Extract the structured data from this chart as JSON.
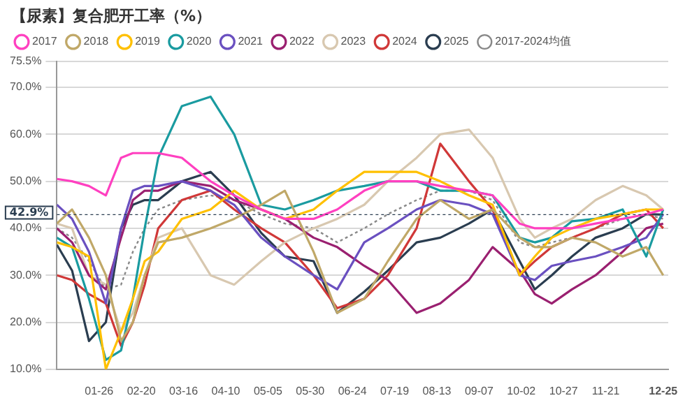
{
  "chart_data": {
    "type": "line",
    "title": "【尿素】复合肥开工率（%）",
    "x": [
      "--01-01",
      "--01-10",
      "--01-20",
      "--01-30",
      "--02-08",
      "--02-15",
      "--02-22",
      "--03-01",
      "--03-15",
      "--04-01",
      "--04-15",
      "--05-01",
      "--05-15",
      "--06-01",
      "--06-15",
      "--07-01",
      "--07-15",
      "--08-01",
      "--08-15",
      "--09-01",
      "--09-15",
      "--10-01",
      "--10-10",
      "--10-20",
      "--11-01",
      "--11-15",
      "--12-01",
      "--12-15",
      "--12-25"
    ],
    "series": [
      {
        "name": "2017",
        "color": "#ff40c0",
        "values": [
          50.5,
          50,
          49,
          47,
          55,
          56,
          56,
          56,
          55,
          50,
          47,
          44,
          42,
          42,
          44,
          48,
          50,
          50,
          49,
          48,
          47,
          41,
          40,
          40,
          40,
          41,
          42,
          43,
          44
        ]
      },
      {
        "name": "2018",
        "color": "#c0a868",
        "values": [
          41,
          44,
          38,
          30,
          16,
          20,
          30,
          37,
          38,
          40,
          42,
          45,
          48,
          35,
          22,
          25,
          33,
          42,
          46,
          42,
          44,
          38,
          36,
          36,
          38,
          37,
          34,
          36,
          30
        ]
      },
      {
        "name": "2019",
        "color": "#ffc000",
        "values": [
          37,
          36,
          34,
          10,
          18,
          25,
          33,
          35,
          42,
          44,
          48,
          44,
          42,
          44,
          48,
          52,
          52,
          52,
          50,
          47,
          45,
          30,
          34,
          38,
          40,
          42,
          43,
          44,
          44
        ]
      },
      {
        "name": "2020",
        "color": "#1a9ba0",
        "values": [
          38,
          36,
          25,
          12,
          14,
          25,
          40,
          55,
          66,
          68,
          60,
          45,
          44,
          46,
          48,
          49,
          50,
          50,
          48,
          48,
          47,
          38,
          37,
          38,
          41.5,
          42,
          44,
          34,
          44
        ]
      },
      {
        "name": "2021",
        "color": "#6a50c0",
        "values": [
          45,
          42,
          35,
          24,
          40,
          48,
          49,
          49,
          50,
          48,
          45,
          38,
          34,
          30,
          27,
          37,
          40,
          44,
          46,
          45,
          43,
          30,
          29,
          32,
          33,
          34,
          36,
          38,
          43
        ]
      },
      {
        "name": "2022",
        "color": "#9a2070",
        "values": [
          40,
          37,
          30,
          27,
          38,
          46,
          48,
          48,
          50,
          49,
          46,
          44,
          42,
          38,
          36,
          32,
          29,
          22,
          24,
          29,
          36,
          31,
          26,
          24,
          27,
          30,
          35,
          40,
          41
        ]
      },
      {
        "name": "2023",
        "color": "#d8c8b0",
        "values": [
          41,
          40,
          30,
          28,
          18,
          22,
          30,
          38,
          40,
          30,
          28,
          33,
          37,
          40,
          42,
          45,
          50,
          55,
          60,
          61,
          55,
          42,
          38,
          40,
          42,
          46,
          49,
          47,
          44
        ]
      },
      {
        "name": "2024",
        "color": "#d03838",
        "values": [
          30,
          29,
          26,
          24,
          15,
          20,
          28,
          40,
          46,
          48,
          44,
          40,
          37,
          30,
          23,
          25,
          30,
          40,
          58,
          50,
          44,
          30,
          33,
          36,
          38,
          40,
          43,
          44,
          40
        ]
      },
      {
        "name": "2025",
        "color": "#2a3d50",
        "values": [
          36.5,
          31,
          16,
          20,
          40,
          45,
          46,
          46,
          50,
          52,
          47,
          39,
          34,
          33,
          22,
          26.5,
          31,
          37,
          38,
          41,
          44,
          33,
          27,
          30,
          34,
          38,
          40,
          43,
          42.9
        ]
      },
      {
        "name": "2017-2024均值",
        "color": "#888888",
        "line_style": "dotted",
        "values": [
          40,
          38,
          33,
          27,
          28,
          35,
          40,
          44,
          46,
          47,
          46,
          43,
          41,
          40,
          37,
          40,
          43,
          46,
          48,
          48,
          46,
          37,
          36,
          37,
          38,
          40,
          42,
          43,
          42
        ]
      }
    ],
    "xlim": [
      "--01-01",
      "--12-28"
    ],
    "xticks": [
      {
        "value": "--01-26",
        "label": "01-26"
      },
      {
        "value": "--02-20",
        "label": "02-20"
      },
      {
        "value": "--03-16",
        "label": "03-16"
      },
      {
        "value": "--04-10",
        "label": "04-10"
      },
      {
        "value": "--05-05",
        "label": "05-05"
      },
      {
        "value": "--05-30",
        "label": "05-30"
      },
      {
        "value": "--06-24",
        "label": "06-24"
      },
      {
        "value": "--07-19",
        "label": "07-19"
      },
      {
        "value": "--08-13",
        "label": "08-13"
      },
      {
        "value": "--09-07",
        "label": "09-07"
      },
      {
        "value": "--10-02",
        "label": "10-02"
      },
      {
        "value": "--10-27",
        "label": "10-27"
      },
      {
        "value": "--11-21",
        "label": "11-21"
      },
      {
        "value": "--12-25",
        "label": "12-25"
      }
    ],
    "ylim": [
      10,
      75.5
    ],
    "yticks": [
      {
        "value": 10,
        "label": "10.0%"
      },
      {
        "value": 20,
        "label": "20.0%"
      },
      {
        "value": 30,
        "label": "30.0%"
      },
      {
        "value": 40,
        "label": "40.0%"
      },
      {
        "value": 50,
        "label": "50.0%"
      },
      {
        "value": 60,
        "label": "60.0%"
      },
      {
        "value": 70,
        "label": "70.0%"
      },
      {
        "value": 75.5,
        "label": "75.5%"
      }
    ],
    "ref_lines": [
      {
        "axis": "y",
        "value": 42.9,
        "label": "42.9%",
        "color": "#2a3d50",
        "line_style": "dotted"
      }
    ],
    "grid": "y",
    "legend": "top"
  }
}
